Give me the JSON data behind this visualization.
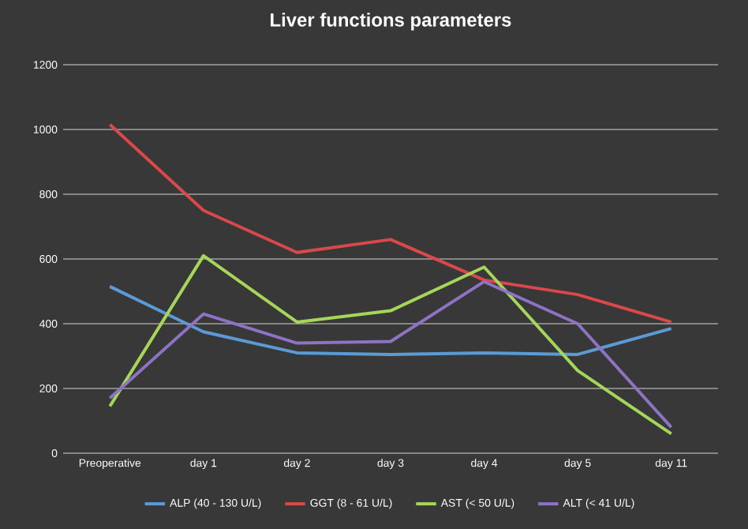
{
  "chart_data": {
    "type": "line",
    "title": "Liver functions parameters",
    "categories": [
      "Preoperative",
      "day 1",
      "day 2",
      "day 3",
      "day 4",
      "day 5",
      "day 11"
    ],
    "series": [
      {
        "name": "ALP (40 - 130 U/L)",
        "color": "#5b9bd5",
        "values": [
          515,
          375,
          310,
          305,
          310,
          305,
          385
        ]
      },
      {
        "name": "GGT (8 - 61 U/L)",
        "color": "#d9484a",
        "values": [
          1015,
          750,
          620,
          660,
          535,
          490,
          405
        ]
      },
      {
        "name": "AST (< 50 U/L)",
        "color": "#a5d65a",
        "values": [
          145,
          610,
          405,
          440,
          575,
          255,
          60
        ]
      },
      {
        "name": "ALT (< 41 U/L)",
        "color": "#8e72c4",
        "values": [
          170,
          430,
          340,
          345,
          530,
          400,
          80
        ]
      }
    ],
    "ylim": [
      0,
      1200
    ],
    "yticks": [
      0,
      200,
      400,
      600,
      800,
      1000,
      1200
    ],
    "grid": "y",
    "legend": "bottom",
    "marker": "none",
    "line_style": "solid"
  }
}
